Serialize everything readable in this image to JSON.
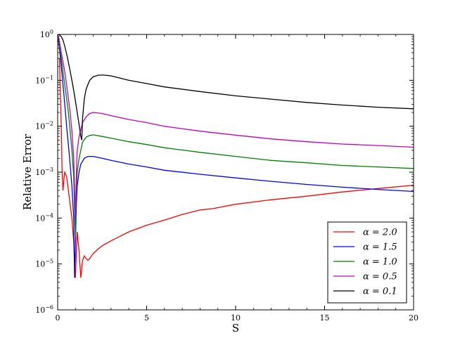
{
  "chart_data": {
    "type": "line",
    "title": "",
    "xlabel": "S",
    "ylabel": "Relative Error",
    "xlim": [
      0,
      20
    ],
    "ylim": [
      1e-06,
      1
    ],
    "yscale": "log",
    "grid": false,
    "legend_position": "lower-right",
    "x_ticks": [
      0,
      5,
      10,
      15,
      20
    ],
    "x_tick_labels": [
      "0",
      "5",
      "10",
      "15",
      "20"
    ],
    "y_ticks": [
      1e-06,
      1e-05,
      0.0001,
      0.001,
      0.01,
      0.1,
      1
    ],
    "y_tick_labels": [
      {
        "base": "10",
        "exp": "−6"
      },
      {
        "base": "10",
        "exp": "−5"
      },
      {
        "base": "10",
        "exp": "−4"
      },
      {
        "base": "10",
        "exp": "−3"
      },
      {
        "base": "10",
        "exp": "−2"
      },
      {
        "base": "10",
        "exp": "−1"
      },
      {
        "base": "10",
        "exp": "0"
      }
    ],
    "series": [
      {
        "name": "α = 2.0",
        "color": "#ff0000",
        "x": [
          0.1,
          0.2,
          0.25,
          0.3,
          0.35,
          0.4,
          0.5,
          0.6,
          0.7,
          0.8,
          0.9,
          0.95,
          1.0,
          1.05,
          1.1,
          1.15,
          1.2,
          1.25,
          1.3,
          1.35,
          1.4,
          1.5,
          1.6,
          1.7,
          1.8,
          1.9,
          2.0,
          2.2,
          2.5,
          3.0,
          3.5,
          4.0,
          5.0,
          6.0,
          7.0,
          8.0,
          8.7,
          10.0,
          12.0,
          14.0,
          16.0,
          18.0,
          20.0
        ],
        "y": [
          0.3,
          0.01,
          0.001,
          0.0004,
          0.0007,
          0.001,
          0.0008,
          0.0004,
          0.0002,
          0.0001,
          3e-05,
          1e-05,
          5e-06,
          2e-05,
          5e-05,
          3e-05,
          2e-05,
          1e-05,
          5e-06,
          8e-06,
          1.2e-05,
          1.5e-05,
          1.3e-05,
          1.2e-05,
          1.3e-05,
          1.5e-05,
          1.7e-05,
          2e-05,
          2.5e-05,
          3.2e-05,
          4e-05,
          5e-05,
          7e-05,
          9e-05,
          0.00012,
          0.00015,
          0.00016,
          0.0002,
          0.00025,
          0.0003,
          0.00037,
          0.00044,
          0.00052
        ]
      },
      {
        "name": "α = 1.5",
        "color": "#0000ff",
        "x": [
          0.0,
          0.1,
          0.2,
          0.3,
          0.4,
          0.5,
          0.6,
          0.7,
          0.8,
          0.9,
          0.95,
          1.0,
          1.05,
          1.1,
          1.2,
          1.3,
          1.5,
          1.7,
          2.0,
          2.5,
          3.0,
          4.0,
          5.0,
          6.0,
          8.0,
          10.0,
          12.0,
          14.0,
          16.0,
          18.0,
          20.0
        ],
        "y": [
          1.0,
          0.5,
          0.2,
          0.08,
          0.03,
          0.01,
          0.004,
          0.0015,
          0.0005,
          0.0001,
          5e-06,
          3e-05,
          0.0002,
          0.0005,
          0.001,
          0.0015,
          0.002,
          0.0022,
          0.0022,
          0.002,
          0.0018,
          0.0015,
          0.0013,
          0.0011,
          0.0009,
          0.00075,
          0.00063,
          0.00054,
          0.00047,
          0.00042,
          0.00038
        ]
      },
      {
        "name": "α = 1.0",
        "color": "#008000",
        "x": [
          0.0,
          0.1,
          0.2,
          0.3,
          0.4,
          0.5,
          0.6,
          0.7,
          0.8,
          0.9,
          0.95,
          1.0,
          1.05,
          1.1,
          1.2,
          1.4,
          1.6,
          1.8,
          2.0,
          2.5,
          3.0,
          4.0,
          5.0,
          6.0,
          8.0,
          10.0,
          12.0,
          14.0,
          16.0,
          18.0,
          20.0
        ],
        "y": [
          1.0,
          0.6,
          0.3,
          0.15,
          0.08,
          0.04,
          0.02,
          0.008,
          0.003,
          0.0008,
          0.00015,
          4e-05,
          0.0004,
          0.001,
          0.002,
          0.0045,
          0.0058,
          0.0063,
          0.0065,
          0.006,
          0.0055,
          0.0046,
          0.004,
          0.0034,
          0.0027,
          0.0022,
          0.0018,
          0.0016,
          0.0014,
          0.0013,
          0.0012
        ]
      },
      {
        "name": "α = 0.5",
        "color": "#bf00bf",
        "x": [
          0.0,
          0.1,
          0.2,
          0.3,
          0.4,
          0.5,
          0.6,
          0.7,
          0.8,
          0.9,
          0.95,
          1.0,
          1.05,
          1.1,
          1.2,
          1.4,
          1.6,
          1.8,
          2.0,
          2.5,
          3.0,
          4.0,
          5.0,
          6.0,
          8.0,
          10.0,
          12.0,
          14.0,
          16.0,
          18.0,
          20.0
        ],
        "y": [
          1.0,
          0.7,
          0.4,
          0.25,
          0.15,
          0.08,
          0.04,
          0.02,
          0.008,
          0.002,
          0.0005,
          0.0001,
          0.001,
          0.003,
          0.006,
          0.012,
          0.016,
          0.019,
          0.02,
          0.019,
          0.017,
          0.014,
          0.012,
          0.01,
          0.0078,
          0.0064,
          0.0053,
          0.0046,
          0.0041,
          0.0038,
          0.0035
        ]
      },
      {
        "name": "α = 0.1",
        "color": "#000000",
        "x": [
          0.0,
          0.1,
          0.2,
          0.3,
          0.4,
          0.5,
          0.6,
          0.7,
          0.8,
          0.9,
          1.0,
          1.1,
          1.2,
          1.3,
          1.35,
          1.4,
          1.5,
          1.6,
          1.8,
          2.0,
          2.3,
          2.6,
          3.0,
          4.0,
          5.0,
          6.0,
          8.0,
          10.0,
          12.0,
          14.0,
          16.0,
          18.0,
          20.0
        ],
        "y": [
          1.0,
          0.98,
          0.9,
          0.75,
          0.55,
          0.38,
          0.25,
          0.16,
          0.1,
          0.06,
          0.035,
          0.02,
          0.011,
          0.006,
          0.005,
          0.015,
          0.04,
          0.065,
          0.1,
          0.12,
          0.13,
          0.13,
          0.125,
          0.1,
          0.085,
          0.072,
          0.057,
          0.046,
          0.039,
          0.033,
          0.029,
          0.026,
          0.024
        ]
      }
    ]
  }
}
